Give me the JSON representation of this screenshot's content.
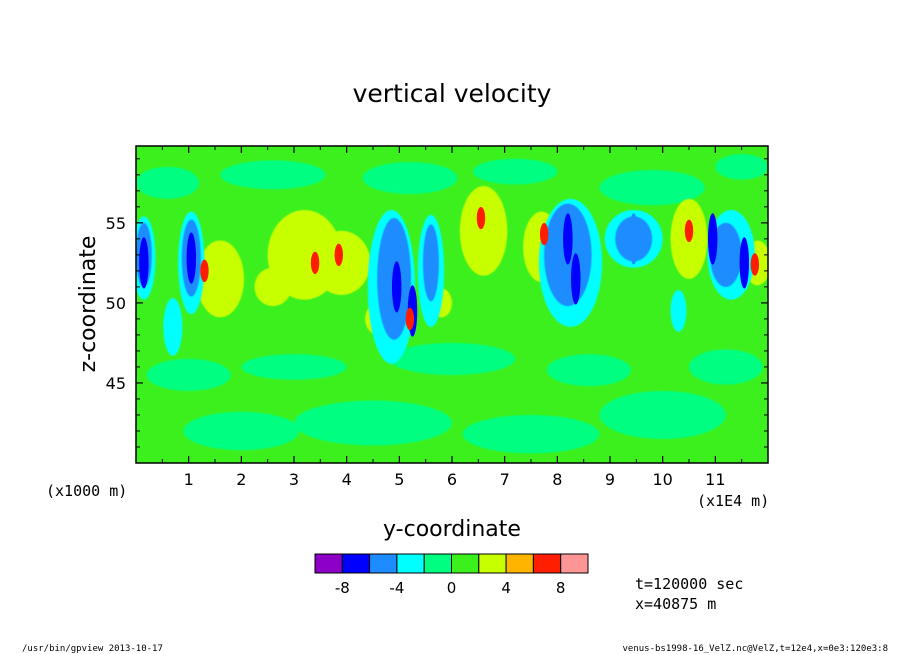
{
  "chart_data": {
    "type": "heatmap",
    "title": "vertical velocity",
    "xlabel": "y-coordinate",
    "ylabel": "z-coordinate",
    "x_units_note": "(x1E4 m)",
    "y_units_note": "(x1000 m)",
    "x_ticks": [
      "1",
      "2",
      "3",
      "4",
      "5",
      "6",
      "7",
      "8",
      "9",
      "10",
      "11"
    ],
    "y_ticks": [
      "45",
      "50",
      "55"
    ],
    "xlim": [
      0,
      12
    ],
    "ylim": [
      40,
      59.8
    ],
    "colorbar": {
      "levels": [
        -10,
        -8,
        -6,
        -4,
        -2,
        0,
        2,
        4,
        6,
        8,
        10
      ],
      "colors": [
        "#8c00c8",
        "#0000ff",
        "#1e8cff",
        "#00ffff",
        "#00ff80",
        "#3cf01e",
        "#c8ff00",
        "#ffb400",
        "#ff1e00",
        "#ff9696"
      ],
      "tick_labels": [
        "-8",
        "-4",
        "0",
        "4",
        "8"
      ],
      "tick_values": [
        -8,
        -4,
        0,
        4,
        8
      ]
    },
    "background_colors": [
      "#3cf01e",
      "#00ff80"
    ],
    "features": [
      {
        "y": 0.15,
        "z": 52.5,
        "value": -8
      },
      {
        "y": 1.05,
        "z": 52.8,
        "value": -8
      },
      {
        "y": 1.3,
        "z": 52.0,
        "value": 6
      },
      {
        "y": 3.4,
        "z": 52.5,
        "value": 6
      },
      {
        "y": 3.85,
        "z": 53.0,
        "value": 6
      },
      {
        "y": 4.95,
        "z": 51.0,
        "value": -8
      },
      {
        "y": 5.25,
        "z": 49.5,
        "value": -8
      },
      {
        "y": 5.2,
        "z": 49.0,
        "value": 6
      },
      {
        "y": 6.55,
        "z": 55.3,
        "value": 6
      },
      {
        "y": 7.75,
        "z": 54.3,
        "value": 6
      },
      {
        "y": 8.2,
        "z": 54.0,
        "value": -8
      },
      {
        "y": 8.35,
        "z": 51.5,
        "value": -8
      },
      {
        "y": 9.45,
        "z": 54.0,
        "value": -6
      },
      {
        "y": 10.5,
        "z": 54.5,
        "value": 6
      },
      {
        "y": 10.95,
        "z": 54.0,
        "value": -8
      },
      {
        "y": 11.55,
        "z": 52.5,
        "value": -8
      },
      {
        "y": 11.75,
        "z": 52.4,
        "value": 6
      }
    ]
  },
  "annotations": {
    "time": "t=120000 sec",
    "position": "x=40875 m"
  },
  "footer": {
    "left": "/usr/bin/gpview  2013-10-17",
    "right": "venus-bs1998-16_VelZ.nc@VelZ,t=12e4,x=0e3:120e3:8"
  }
}
